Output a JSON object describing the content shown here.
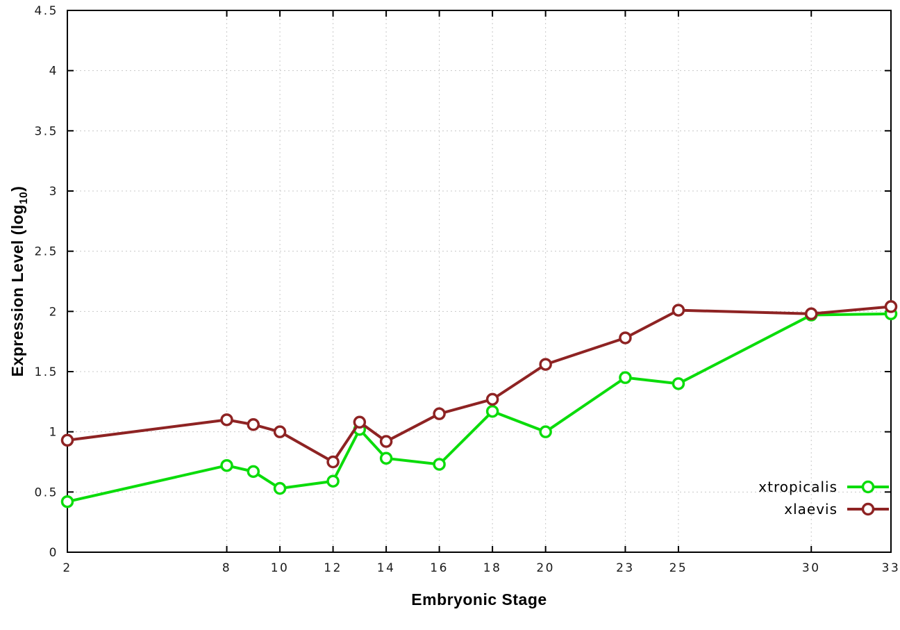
{
  "chart_data": {
    "type": "line",
    "title": "",
    "xlabel": "Embryonic Stage",
    "ylabel": "Expression Level (log10)",
    "ylabel_parts": {
      "prefix": "Expression Level (log",
      "sub": "10",
      "suffix": ")"
    },
    "xlim": [
      2,
      33
    ],
    "ylim": [
      0,
      4.5
    ],
    "x_ticks": [
      2,
      8,
      10,
      12,
      14,
      16,
      18,
      20,
      23,
      25,
      30,
      33
    ],
    "y_ticks": [
      0,
      0.5,
      1,
      1.5,
      2,
      2.5,
      3,
      3.5,
      4,
      4.5
    ],
    "grid": true,
    "grid_color": "#c8c8c8",
    "border_color": "#000000",
    "legend_position": "bottom-right",
    "x": [
      2,
      8,
      9,
      10,
      12,
      13,
      14,
      16,
      18,
      20,
      23,
      25,
      30,
      33
    ],
    "series": [
      {
        "name": "xtropicalis",
        "color": "#0bdc0b",
        "values": [
          0.42,
          0.72,
          0.67,
          0.53,
          0.59,
          1.02,
          0.78,
          0.73,
          1.17,
          1.0,
          1.45,
          1.4,
          1.97,
          1.98
        ]
      },
      {
        "name": "xlaevis",
        "color": "#8e2323",
        "values": [
          0.93,
          1.1,
          1.06,
          1.0,
          0.75,
          1.08,
          0.92,
          1.15,
          1.27,
          1.56,
          1.78,
          2.01,
          1.98,
          2.04
        ]
      }
    ]
  }
}
